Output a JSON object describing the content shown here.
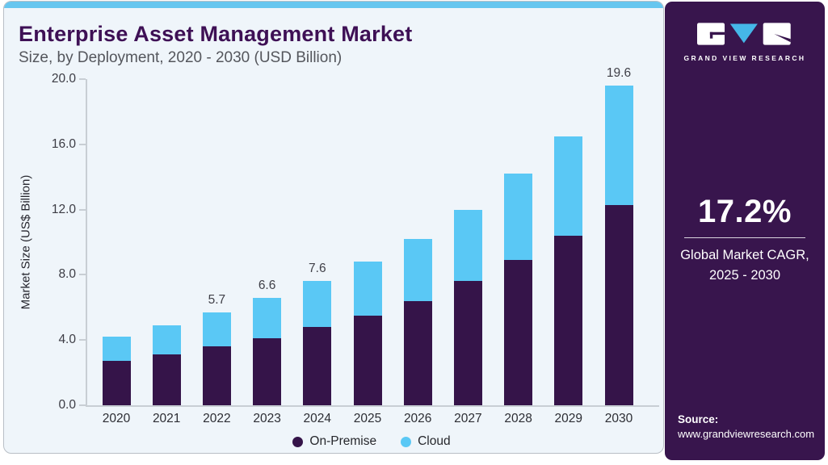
{
  "header": {
    "title": "Enterprise Asset Management Market",
    "subtitle": "Size, by Deployment, 2020 - 2030 (USD Billion)"
  },
  "chart_data": {
    "type": "bar",
    "stacked": true,
    "title": "Enterprise Asset Management Market Size, by Deployment, 2020 - 2030 (USD Billion)",
    "categories": [
      "2020",
      "2021",
      "2022",
      "2023",
      "2024",
      "2025",
      "2026",
      "2027",
      "2028",
      "2029",
      "2030"
    ],
    "series": [
      {
        "name": "On-Premise",
        "color": "#351449",
        "values": [
          2.7,
          3.1,
          3.6,
          4.1,
          4.8,
          5.5,
          6.4,
          7.6,
          8.9,
          10.4,
          12.3
        ]
      },
      {
        "name": "Cloud",
        "color": "#5ac8f5",
        "values": [
          1.5,
          1.8,
          2.1,
          2.5,
          2.8,
          3.3,
          3.8,
          4.4,
          5.3,
          6.1,
          7.3
        ]
      }
    ],
    "totals": [
      4.2,
      4.9,
      5.7,
      6.6,
      7.6,
      8.8,
      10.2,
      12.0,
      14.2,
      16.5,
      19.6
    ],
    "bar_labels": [
      "",
      "",
      "5.7",
      "6.6",
      "7.6",
      "",
      "",
      "",
      "",
      "",
      "19.6"
    ],
    "ylabel": "Market Size (US$ Billion)",
    "ylim": [
      0,
      20
    ],
    "yticks": [
      "0.0",
      "4.0",
      "8.0",
      "12.0",
      "16.0",
      "20.0"
    ],
    "grid": false,
    "legend_position": "bottom"
  },
  "panel": {
    "logo_text": "GRAND VIEW RESEARCH",
    "cagr_value": "17.2%",
    "cagr_label_line1": "Global Market CAGR,",
    "cagr_label_line2": "2025 - 2030",
    "source_label": "Source:",
    "source_url": "www.grandviewresearch.com"
  },
  "colors": {
    "card_background": "#eff5fa",
    "card_border": "#b9bfc6",
    "top_strip": "#67c6ef",
    "title_text": "#3e1055",
    "subtitle_text": "#54565c",
    "axis_line": "#c8ced4",
    "panel_background": "#38154d",
    "on_premise": "#351449",
    "cloud": "#5ac8f5",
    "logo_triangle": "#45b7e8"
  }
}
